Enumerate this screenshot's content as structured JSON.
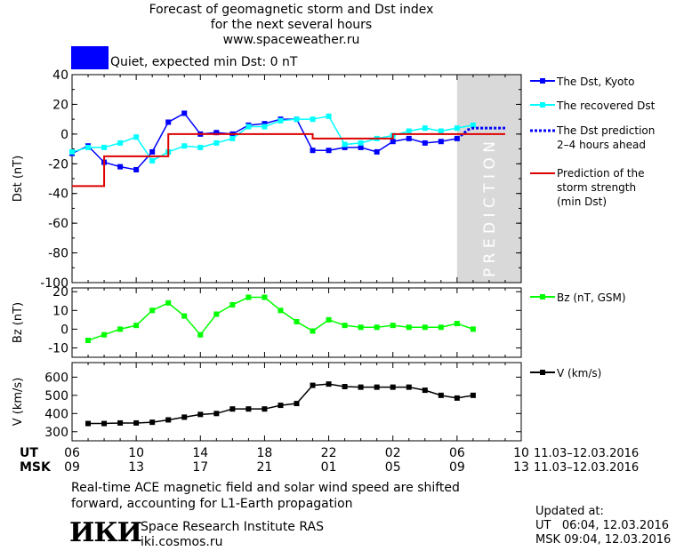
{
  "header": {
    "title_line1": "Forecast of geomagnetic storm and Dst index",
    "title_line2": "for the next several hours",
    "title_line3": "www.spaceweather.ru",
    "quiet_text": "Quiet, expected min Dst: 0 nT",
    "quiet_color": "#0000ff"
  },
  "colors": {
    "dst_kyoto": "#0000ff",
    "dst_recovered": "#00ffff",
    "dst_prediction": "#0000ff",
    "storm_strength": "#dd0000",
    "bz": "#00ff00",
    "v": "#000000",
    "prediction_band": "#d9d9d9"
  },
  "legend": {
    "dst_kyoto": "The Dst, Kyoto",
    "dst_recovered": "The recovered Dst",
    "dst_prediction": "The Dst prediction\n2–4 hours ahead",
    "storm_strength": "Prediction of the\nstorm strength\n(min Dst)",
    "bz": "Bz (nT, GSM)",
    "v": "V (km/s)"
  },
  "prediction_label": "P R E D I C T I O N",
  "time_axis": {
    "ut_label": "UT",
    "msk_label": "MSK",
    "ut_ticks": [
      "06",
      "10",
      "14",
      "18",
      "22",
      "02",
      "06",
      "10"
    ],
    "msk_ticks": [
      "09",
      "13",
      "17",
      "21",
      "01",
      "05",
      "09",
      "13"
    ],
    "date_range_ut": "11.03–12.03.2016",
    "date_range_msk": "11.03–12.03.2016"
  },
  "chart_data": [
    {
      "type": "line",
      "ylabel": "Dst (nT)",
      "ylim": [
        -100,
        40
      ],
      "yticks": [
        40,
        20,
        0,
        -20,
        -40,
        -60,
        -80,
        -100
      ],
      "xlim": [
        6,
        34
      ],
      "prediction_region": [
        30,
        34
      ],
      "series": [
        {
          "name": "The Dst, Kyoto",
          "color": "#0000ff",
          "x": [
            6,
            7,
            8,
            9,
            10,
            11,
            12,
            13,
            14,
            15,
            16,
            17,
            18,
            19,
            20,
            21,
            22,
            23,
            24,
            25,
            26,
            27,
            28,
            29,
            30
          ],
          "y": [
            -13,
            -8,
            -19,
            -22,
            -24,
            -12,
            8,
            14,
            0,
            1,
            0,
            6,
            7,
            10,
            10,
            -11,
            -11,
            -9,
            -9,
            -12,
            -5,
            -3,
            -6,
            -5,
            -3
          ]
        },
        {
          "name": "The recovered Dst",
          "color": "#00ffff",
          "x": [
            6,
            7,
            8,
            9,
            10,
            11,
            12,
            13,
            14,
            15,
            16,
            17,
            18,
            19,
            20,
            21,
            22,
            23,
            24,
            25,
            26,
            27,
            28,
            29,
            30,
            31
          ],
          "y": [
            -12,
            -9,
            -9,
            -6,
            -2,
            -18,
            -12,
            -8,
            -9,
            -6,
            -3,
            5,
            5,
            9,
            10,
            10,
            12,
            -7,
            -6,
            -3,
            -1,
            2,
            4,
            2,
            4,
            6
          ]
        },
        {
          "name": "The Dst prediction 2–4 hours ahead",
          "color": "#0000ff",
          "dashed": true,
          "x": [
            30,
            30.7,
            31,
            32,
            33
          ],
          "y": [
            -3,
            3,
            4,
            4,
            4
          ]
        },
        {
          "name": "Prediction of the storm strength (min Dst)",
          "color": "#dd0000",
          "step": true,
          "x": [
            6,
            7,
            8,
            9,
            10,
            11,
            12,
            13,
            14,
            15,
            16,
            17,
            18,
            19,
            20,
            21,
            22,
            23,
            24,
            25,
            26,
            27,
            28,
            29,
            30,
            31,
            32,
            33
          ],
          "y": [
            -35,
            -35,
            -15,
            -15,
            -15,
            -15,
            0,
            0,
            0,
            0,
            0,
            0,
            0,
            0,
            0,
            -3,
            -3,
            -3,
            -3,
            -3,
            0,
            0,
            0,
            0,
            0,
            0,
            0,
            0
          ]
        }
      ]
    },
    {
      "type": "line",
      "ylabel": "Bz (nT)",
      "ylim": [
        -15,
        22
      ],
      "yticks": [
        20,
        10,
        0,
        -10
      ],
      "xlim": [
        6,
        34
      ],
      "series": [
        {
          "name": "Bz (nT, GSM)",
          "color": "#00ff00",
          "x": [
            7,
            8,
            9,
            10,
            11,
            12,
            13,
            14,
            15,
            16,
            17,
            18,
            19,
            20,
            21,
            22,
            23,
            24,
            25,
            26,
            27,
            28,
            29,
            30,
            31
          ],
          "y": [
            -6,
            -3,
            0,
            2,
            10,
            14,
            7,
            -3,
            8,
            13,
            17,
            17,
            10,
            4,
            -1,
            5,
            2,
            1,
            1,
            2,
            1,
            1,
            1,
            3,
            0
          ]
        }
      ]
    },
    {
      "type": "line",
      "ylabel": "V (km/s)",
      "ylim": [
        250,
        680
      ],
      "yticks": [
        600,
        500,
        400,
        300
      ],
      "xlim": [
        6,
        34
      ],
      "series": [
        {
          "name": "V (km/s)",
          "color": "#000000",
          "x": [
            7,
            8,
            9,
            10,
            11,
            12,
            13,
            14,
            15,
            16,
            17,
            18,
            19,
            20,
            21,
            22,
            23,
            24,
            25,
            26,
            27,
            28,
            29,
            30,
            31
          ],
          "y": [
            345,
            345,
            348,
            348,
            352,
            365,
            380,
            395,
            400,
            425,
            425,
            425,
            445,
            455,
            555,
            562,
            548,
            545,
            545,
            545,
            545,
            528,
            500,
            485,
            500
          ]
        }
      ]
    }
  ],
  "footer": {
    "note_line1": "Real-time ACE magnetic field and solar wind speed are shifted",
    "note_line2": "forward, accounting for L1-Earth propagation",
    "logo_text": "ИКИ",
    "institute": "Space Research Institute RAS",
    "url": "iki.cosmos.ru",
    "updated_label": "Updated at:",
    "updated_ut": "UT   06:04, 12.03.2016",
    "updated_msk": "MSK 09:04, 12.03.2016"
  }
}
